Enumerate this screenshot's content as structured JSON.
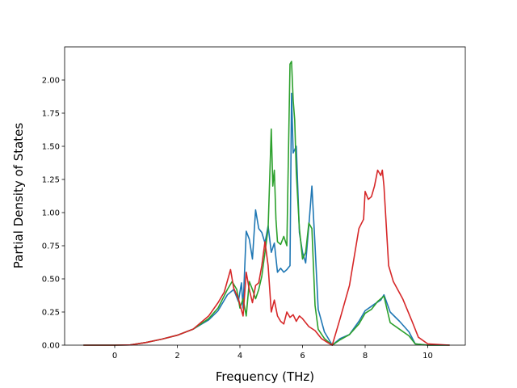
{
  "chart_data": {
    "type": "line",
    "title": "",
    "xlabel": "Frequency (THz)",
    "ylabel": "Partial Density of States",
    "xlim": [
      -1.6,
      11.2
    ],
    "ylim": [
      0,
      2.25
    ],
    "xticks": [
      "0",
      "2",
      "4",
      "6",
      "8",
      "10"
    ],
    "xtick_values": [
      0,
      2,
      4,
      6,
      8,
      10
    ],
    "yticks": [
      "0.00",
      "0.25",
      "0.50",
      "0.75",
      "1.00",
      "1.25",
      "1.50",
      "1.75",
      "2.00"
    ],
    "ytick_values": [
      0,
      0.25,
      0.5,
      0.75,
      1.0,
      1.25,
      1.5,
      1.75,
      2.0
    ],
    "grid": false,
    "legend": "none",
    "series": [
      {
        "color": "#1f77b4",
        "x": [
          -1.0,
          0.0,
          0.5,
          1.0,
          1.5,
          2.0,
          2.5,
          3.0,
          3.3,
          3.6,
          3.8,
          3.95,
          4.05,
          4.1,
          4.2,
          4.3,
          4.4,
          4.5,
          4.6,
          4.7,
          4.8,
          4.9,
          5.0,
          5.1,
          5.2,
          5.3,
          5.4,
          5.5,
          5.6,
          5.65,
          5.7,
          5.8,
          5.9,
          6.0,
          6.1,
          6.2,
          6.3,
          6.4,
          6.5,
          6.7,
          6.95,
          7.2,
          7.5,
          7.8,
          8.0,
          8.3,
          8.5,
          8.6,
          8.8,
          9.1,
          9.4,
          9.6,
          10.0,
          10.7
        ],
        "y": [
          0,
          0,
          0.002,
          0.02,
          0.045,
          0.075,
          0.12,
          0.19,
          0.26,
          0.38,
          0.42,
          0.33,
          0.47,
          0.28,
          0.86,
          0.8,
          0.65,
          1.02,
          0.88,
          0.85,
          0.77,
          0.9,
          0.7,
          0.77,
          0.55,
          0.58,
          0.55,
          0.57,
          0.6,
          1.9,
          1.45,
          1.5,
          0.85,
          0.7,
          0.62,
          0.9,
          1.2,
          0.75,
          0.27,
          0.1,
          0.0,
          0.05,
          0.08,
          0.18,
          0.26,
          0.31,
          0.34,
          0.38,
          0.25,
          0.18,
          0.1,
          0.01,
          0,
          0
        ]
      },
      {
        "color": "#2ca02c",
        "x": [
          -1.0,
          0.0,
          0.5,
          1.0,
          1.5,
          2.0,
          2.5,
          3.0,
          3.3,
          3.6,
          3.75,
          3.9,
          4.0,
          4.1,
          4.2,
          4.3,
          4.4,
          4.5,
          4.6,
          4.7,
          4.8,
          4.9,
          5.0,
          5.05,
          5.1,
          5.15,
          5.2,
          5.3,
          5.4,
          5.5,
          5.6,
          5.65,
          5.7,
          5.75,
          5.8,
          5.9,
          6.0,
          6.1,
          6.2,
          6.3,
          6.4,
          6.5,
          6.7,
          6.95,
          7.2,
          7.5,
          7.8,
          8.0,
          8.2,
          8.4,
          8.6,
          8.8,
          9.1,
          9.4,
          9.6,
          10.0,
          10.7
        ],
        "y": [
          0,
          0,
          0.002,
          0.02,
          0.045,
          0.075,
          0.12,
          0.2,
          0.28,
          0.42,
          0.48,
          0.42,
          0.28,
          0.35,
          0.22,
          0.48,
          0.42,
          0.35,
          0.42,
          0.52,
          0.7,
          0.88,
          1.63,
          1.2,
          1.32,
          0.95,
          0.78,
          0.76,
          0.82,
          0.75,
          2.12,
          2.14,
          1.85,
          1.7,
          1.3,
          0.88,
          0.65,
          0.7,
          0.92,
          0.88,
          0.3,
          0.12,
          0.05,
          0.0,
          0.04,
          0.08,
          0.16,
          0.24,
          0.27,
          0.33,
          0.37,
          0.17,
          0.12,
          0.07,
          0.01,
          0,
          0
        ]
      },
      {
        "color": "#d62728",
        "x": [
          -1.0,
          0.0,
          0.5,
          1.0,
          1.5,
          2.0,
          2.5,
          3.0,
          3.3,
          3.5,
          3.7,
          3.8,
          3.95,
          4.1,
          4.2,
          4.3,
          4.4,
          4.5,
          4.6,
          4.7,
          4.8,
          4.9,
          5.0,
          5.1,
          5.2,
          5.3,
          5.4,
          5.5,
          5.6,
          5.7,
          5.8,
          5.9,
          6.0,
          6.2,
          6.4,
          6.6,
          6.8,
          6.95,
          7.2,
          7.5,
          7.8,
          7.95,
          8.0,
          8.1,
          8.2,
          8.3,
          8.4,
          8.5,
          8.55,
          8.6,
          8.75,
          8.9,
          9.2,
          9.5,
          9.7,
          10.0,
          10.7
        ],
        "y": [
          0,
          0,
          0.002,
          0.02,
          0.045,
          0.075,
          0.12,
          0.22,
          0.32,
          0.4,
          0.57,
          0.43,
          0.35,
          0.22,
          0.55,
          0.42,
          0.32,
          0.45,
          0.47,
          0.6,
          0.78,
          0.6,
          0.25,
          0.34,
          0.22,
          0.18,
          0.16,
          0.25,
          0.21,
          0.23,
          0.18,
          0.22,
          0.2,
          0.14,
          0.11,
          0.05,
          0.02,
          0.0,
          0.2,
          0.45,
          0.88,
          0.95,
          1.16,
          1.1,
          1.12,
          1.2,
          1.32,
          1.28,
          1.32,
          1.2,
          0.6,
          0.48,
          0.35,
          0.18,
          0.06,
          0.01,
          0
        ]
      }
    ]
  }
}
